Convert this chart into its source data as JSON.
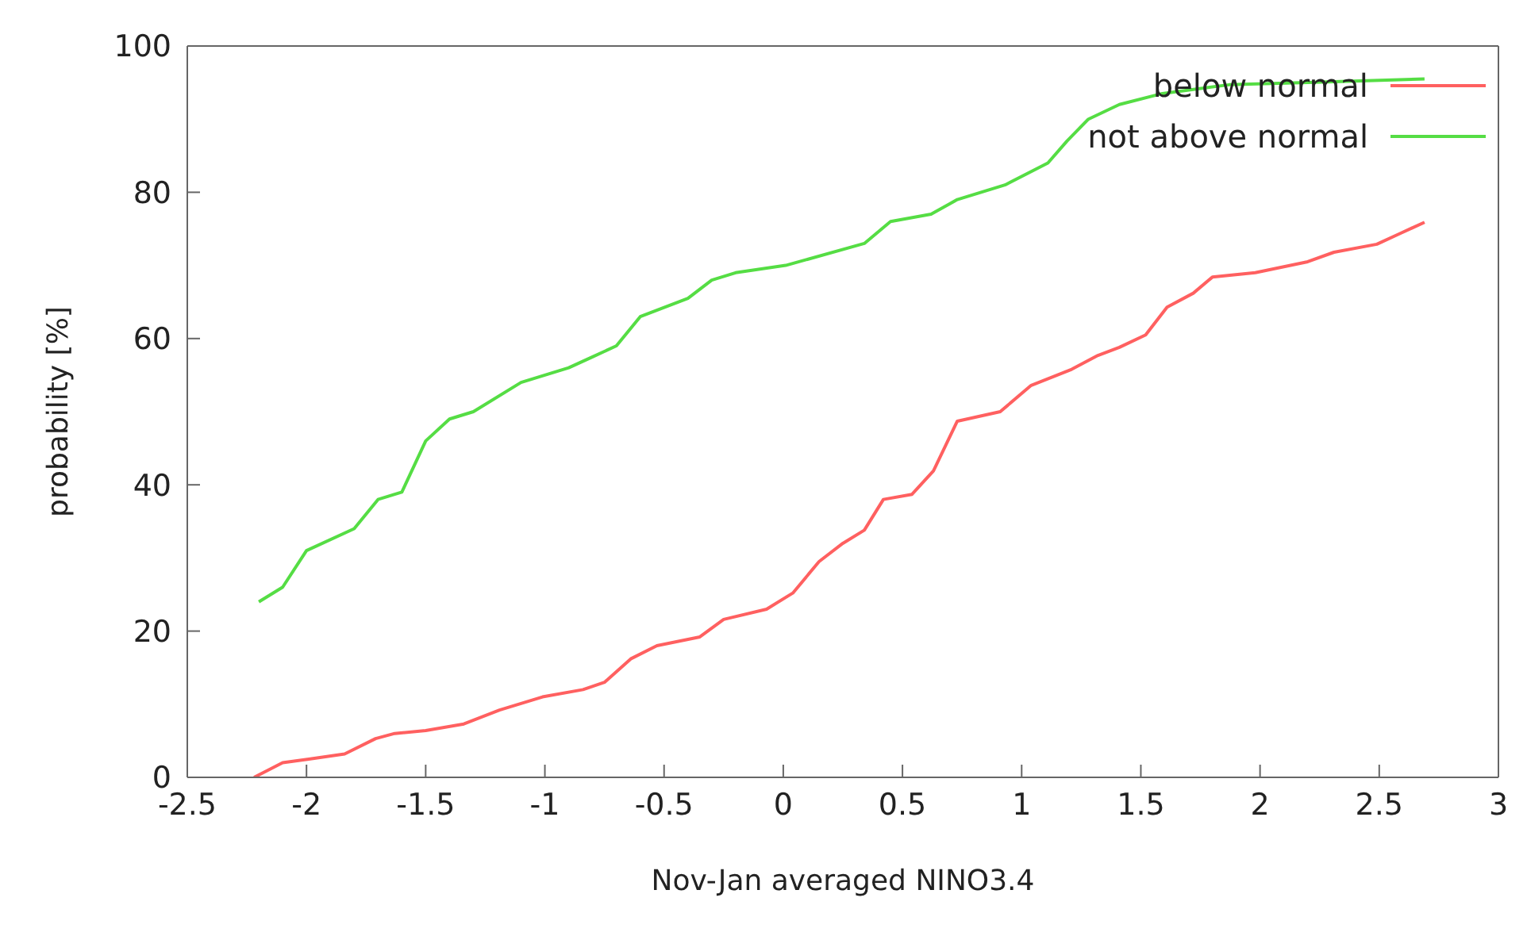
{
  "chart_data": {
    "type": "line",
    "xlabel": "Nov-Jan averaged NINO3.4",
    "ylabel": "probability [%]",
    "xlim": [
      -2.5,
      3
    ],
    "xticks": [
      -2.5,
      -2,
      -1.5,
      -1,
      -0.5,
      0,
      0.5,
      1,
      1.5,
      2,
      2.5,
      3
    ],
    "ylim": [
      0,
      100
    ],
    "yticks": [
      0,
      20,
      40,
      60,
      80,
      100
    ],
    "legend": "top right",
    "marker": "none",
    "line_style": "solid",
    "series": [
      {
        "name": "below normal",
        "color": "#ff6060",
        "x": [
          -2.22,
          -2.1,
          -1.99,
          -1.84,
          -1.71,
          -1.63,
          -1.5,
          -1.34,
          -1.19,
          -1.01,
          -0.84,
          -0.75,
          -0.64,
          -0.53,
          -0.35,
          -0.25,
          -0.07,
          0.04,
          0.15,
          0.25,
          0.34,
          0.42,
          0.54,
          0.63,
          0.73,
          0.91,
          1.04,
          1.21,
          1.32,
          1.41,
          1.52,
          1.61,
          1.72,
          1.8,
          1.98,
          2.2,
          2.31,
          2.49,
          2.59,
          2.69
        ],
        "values": [
          0,
          2,
          2.5,
          3.2,
          5.3,
          6,
          6.4,
          7.3,
          9.2,
          11,
          12,
          13,
          16.2,
          18,
          19.2,
          21.6,
          23,
          25.2,
          29.5,
          32,
          33.8,
          38,
          38.7,
          41.9,
          48.7,
          50,
          53.6,
          55.8,
          57.7,
          58.8,
          60.5,
          64.3,
          66.2,
          68.4,
          69,
          70.5,
          71.8,
          72.9,
          74.4,
          75.9
        ]
      },
      {
        "name": "not above normal",
        "color": "#55dd44",
        "x": [
          -2.2,
          -2.1,
          -2.0,
          -1.8,
          -1.7,
          -1.6,
          -1.5,
          -1.4,
          -1.3,
          -1.1,
          -0.9,
          -0.8,
          -0.7,
          -0.6,
          -0.4,
          -0.3,
          -0.2,
          0.01,
          0.34,
          0.45,
          0.62,
          0.73,
          0.93,
          1.11,
          1.19,
          1.28,
          1.41,
          1.59,
          1.87,
          2.2,
          2.69
        ],
        "values": [
          24,
          26,
          31,
          34,
          38,
          39,
          46,
          49,
          50,
          54,
          56,
          57.5,
          59,
          63,
          65.5,
          68,
          69,
          70,
          73,
          76,
          77,
          79,
          81,
          84,
          87,
          90,
          92,
          93.5,
          94.7,
          95,
          95.5
        ]
      }
    ]
  }
}
